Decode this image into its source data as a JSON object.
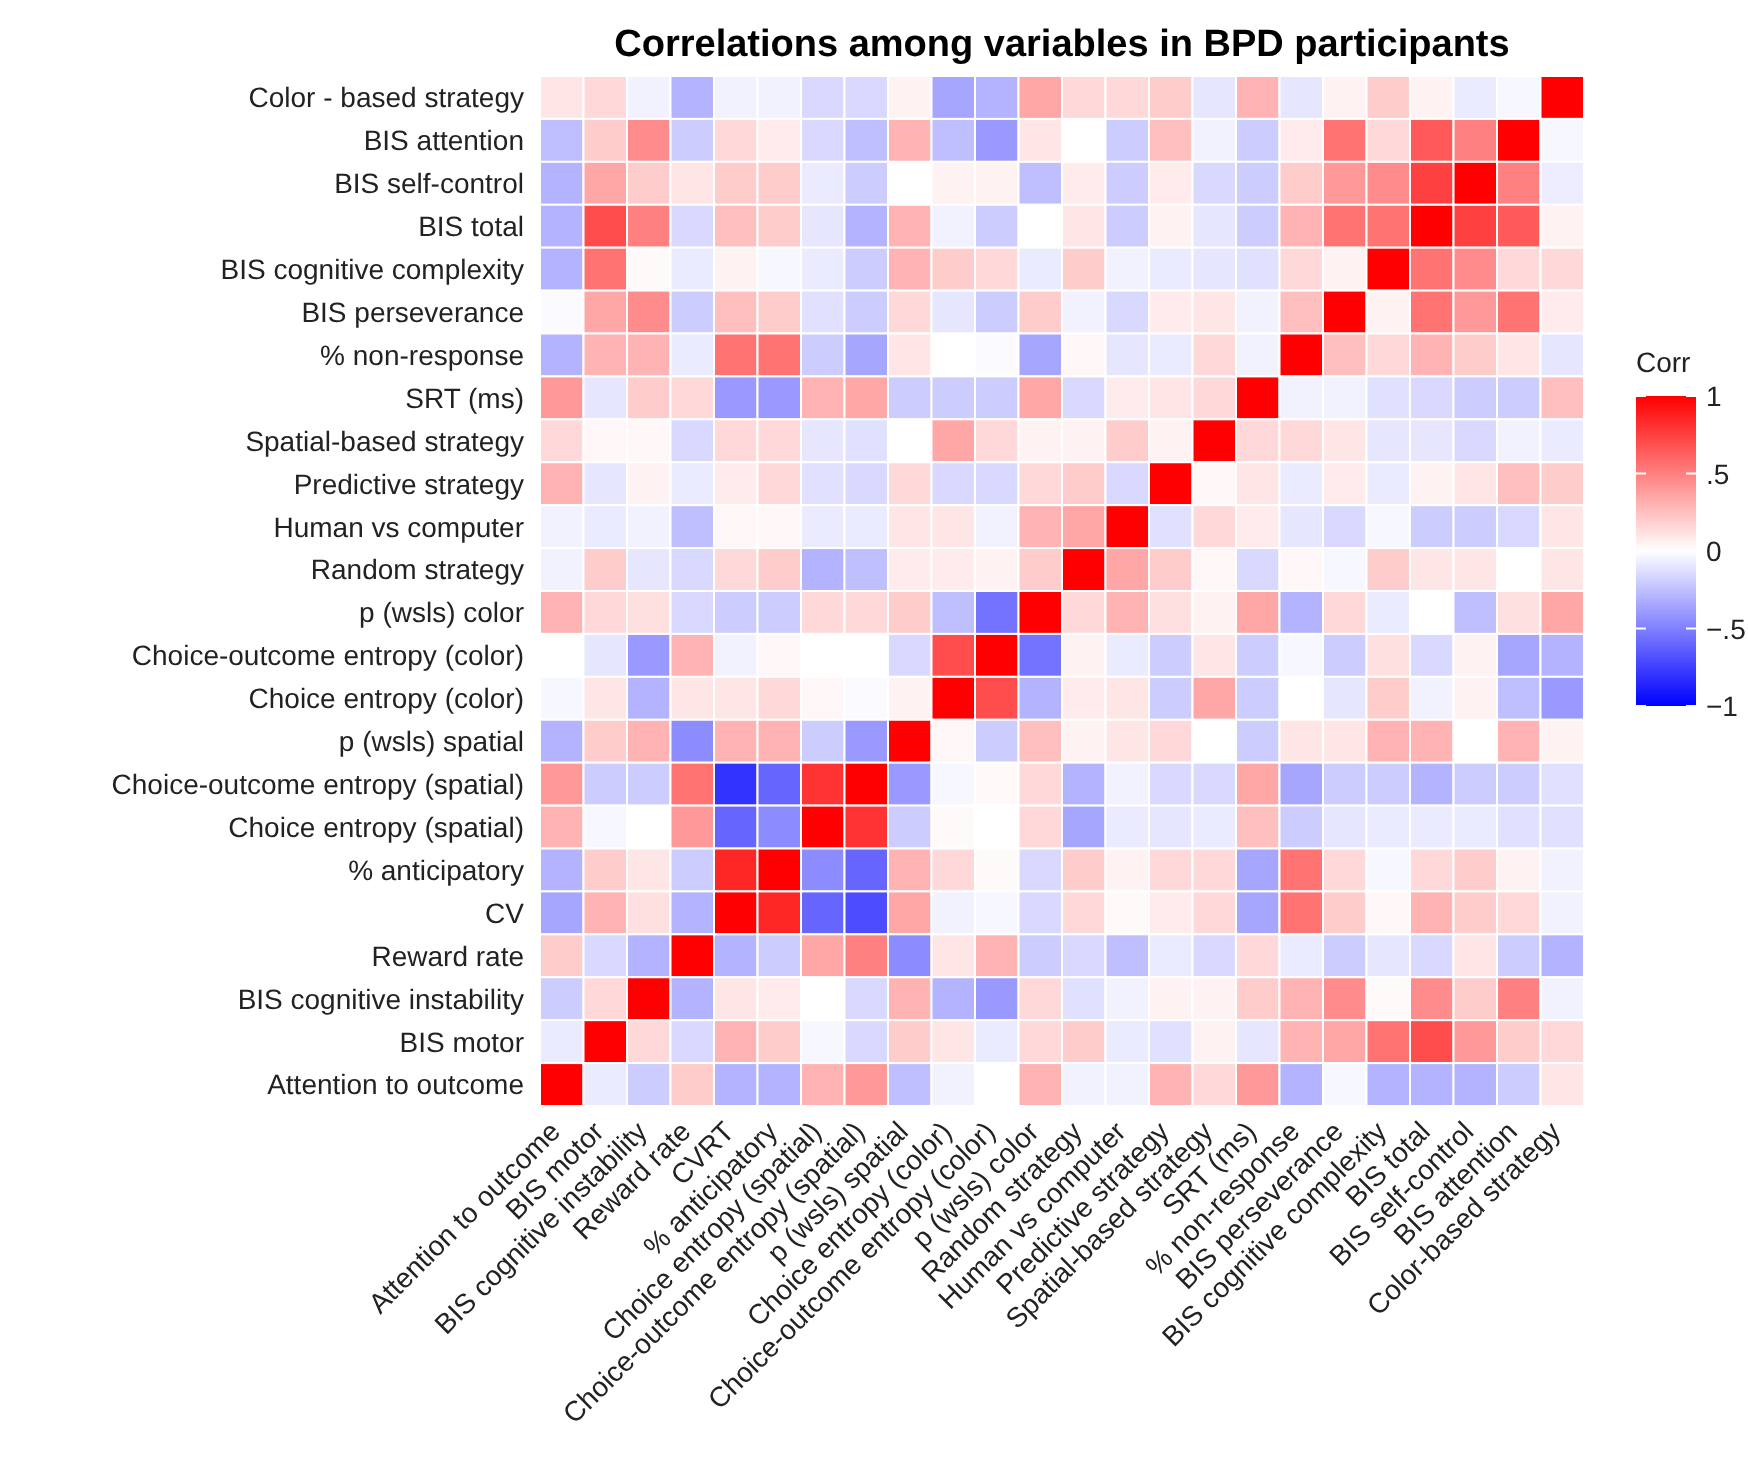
{
  "chart_data": {
    "type": "heatmap",
    "title": "Correlations among variables in BPD participants",
    "clabel": "Corr",
    "categories": [
      "Attention to outcome",
      "BIS motor",
      "BIS cognitive instability",
      "Reward rate",
      "CVRT",
      "% anticipatory",
      "Choice entropy (spatial)",
      "Choice-outcome entropy (spatial)",
      "p (wsls) spatial",
      "Choice entropy (color)",
      "Choice-outcome entropy (color)",
      "p (wsls) color",
      "Random strategy",
      "Human vs computer",
      "Predictive strategy",
      "Spatial-based strategy",
      "SRT (ms)",
      "% non-response",
      "BIS perseverance",
      "BIS cognitive complexity",
      "BIS total",
      "BIS self-control",
      "BIS attention",
      "Color-based strategy"
    ],
    "y_categories": [
      "Color - based strategy",
      "BIS attention",
      "BIS self-control",
      "BIS total",
      "BIS cognitive complexity",
      "BIS perseverance",
      "% non-response",
      "SRT (ms)",
      "Spatial-based strategy",
      "Predictive strategy",
      "Human vs computer",
      "Random strategy",
      "p (wsls) color",
      "Choice-outcome entropy (color)",
      "Choice entropy (color)",
      "p (wsls) spatial",
      "Choice-outcome entropy (spatial)",
      "Choice entropy (spatial)",
      "% anticipatory",
      "CV",
      "Reward rate",
      "BIS cognitive instability",
      "BIS motor",
      "Attention to outcome"
    ],
    "cells": [
      [
        0.1,
        0.15,
        -0.05,
        -0.3,
        -0.05,
        -0.05,
        -0.15,
        -0.15,
        0.05,
        -0.35,
        -0.3,
        0.35,
        0.15,
        0.15,
        0.2,
        -0.1,
        0.3,
        -0.1,
        0.05,
        0.2,
        0.05,
        -0.08,
        -0.03,
        1
      ],
      [
        -0.25,
        0.2,
        0.45,
        -0.2,
        0.15,
        0.08,
        -0.15,
        -0.25,
        0.3,
        -0.25,
        -0.4,
        0.1,
        0.0,
        -0.2,
        0.25,
        -0.05,
        -0.2,
        0.08,
        0.55,
        0.15,
        0.65,
        0.5,
        1,
        -0.03
      ],
      [
        -0.3,
        0.35,
        0.2,
        0.1,
        0.2,
        0.2,
        -0.08,
        -0.2,
        0.0,
        0.05,
        0.05,
        -0.25,
        0.08,
        -0.2,
        0.08,
        -0.15,
        -0.2,
        0.2,
        0.4,
        0.45,
        0.75,
        1,
        0.5,
        -0.07
      ],
      [
        -0.3,
        0.7,
        0.5,
        -0.15,
        0.25,
        0.2,
        -0.1,
        -0.3,
        0.3,
        -0.05,
        -0.2,
        0.0,
        0.1,
        -0.2,
        0.05,
        -0.1,
        -0.2,
        0.3,
        0.55,
        0.55,
        1,
        0.75,
        0.65,
        0.05
      ],
      [
        -0.3,
        0.55,
        0.02,
        -0.08,
        0.05,
        -0.03,
        -0.08,
        -0.2,
        0.3,
        0.2,
        0.15,
        -0.08,
        0.2,
        -0.05,
        -0.08,
        -0.1,
        -0.12,
        0.15,
        0.05,
        1,
        0.55,
        0.45,
        0.15,
        0.15
      ],
      [
        -0.02,
        0.35,
        0.45,
        -0.2,
        0.25,
        0.2,
        -0.12,
        -0.2,
        0.15,
        -0.1,
        -0.2,
        0.2,
        -0.05,
        -0.15,
        0.08,
        0.1,
        -0.05,
        0.25,
        1,
        0.05,
        0.55,
        0.4,
        0.55,
        0.08
      ],
      [
        -0.3,
        0.3,
        0.3,
        -0.08,
        0.55,
        0.55,
        -0.2,
        -0.35,
        0.1,
        0.0,
        -0.02,
        -0.35,
        0.03,
        -0.1,
        -0.08,
        0.15,
        -0.05,
        1,
        0.25,
        0.15,
        0.3,
        0.2,
        0.1,
        -0.1
      ],
      [
        0.4,
        -0.1,
        0.2,
        0.15,
        -0.4,
        -0.4,
        0.3,
        0.35,
        -0.2,
        -0.2,
        -0.2,
        0.35,
        -0.15,
        0.08,
        0.1,
        0.15,
        1,
        -0.05,
        -0.05,
        -0.12,
        -0.15,
        -0.2,
        -0.2,
        0.25
      ],
      [
        0.15,
        0.03,
        0.03,
        -0.15,
        0.15,
        0.15,
        -0.1,
        -0.12,
        0.0,
        0.35,
        0.15,
        0.05,
        0.05,
        0.2,
        0.05,
        1,
        0.15,
        0.15,
        0.1,
        -0.1,
        -0.1,
        -0.15,
        -0.05,
        -0.08
      ],
      [
        0.3,
        -0.1,
        0.05,
        -0.08,
        0.08,
        0.15,
        -0.12,
        -0.15,
        0.15,
        -0.15,
        -0.15,
        0.15,
        0.2,
        -0.15,
        1,
        0.03,
        0.1,
        -0.08,
        0.08,
        -0.08,
        0.05,
        0.1,
        0.25,
        0.2
      ],
      [
        -0.05,
        -0.08,
        -0.05,
        -0.25,
        0.03,
        0.03,
        -0.08,
        -0.08,
        0.1,
        0.1,
        -0.05,
        0.3,
        0.35,
        1,
        -0.12,
        0.15,
        0.08,
        -0.1,
        -0.15,
        -0.03,
        -0.2,
        -0.2,
        -0.15,
        0.1
      ],
      [
        -0.05,
        0.2,
        -0.1,
        -0.15,
        0.15,
        0.2,
        -0.3,
        -0.25,
        0.08,
        0.08,
        0.05,
        0.2,
        1,
        0.35,
        0.2,
        0.03,
        -0.15,
        0.03,
        -0.03,
        0.2,
        0.1,
        0.1,
        0.0,
        0.1
      ],
      [
        0.3,
        0.15,
        0.12,
        -0.15,
        -0.2,
        -0.2,
        0.15,
        0.15,
        0.2,
        -0.25,
        -0.55,
        1,
        0.15,
        0.3,
        0.12,
        0.05,
        0.35,
        -0.3,
        0.15,
        -0.08,
        0.0,
        -0.25,
        0.12,
        0.35
      ],
      [
        0.0,
        -0.1,
        -0.4,
        0.3,
        -0.05,
        0.03,
        0.0,
        0.0,
        -0.15,
        0.7,
        1,
        -0.55,
        0.05,
        -0.08,
        -0.2,
        0.1,
        -0.2,
        -0.03,
        -0.2,
        0.12,
        -0.15,
        0.05,
        -0.35,
        -0.3
      ],
      [
        -0.03,
        0.1,
        -0.3,
        0.1,
        0.1,
        0.15,
        0.03,
        -0.02,
        0.05,
        1,
        0.7,
        -0.3,
        0.08,
        0.1,
        -0.2,
        0.35,
        -0.2,
        0.0,
        -0.1,
        0.2,
        -0.05,
        0.05,
        -0.25,
        -0.4
      ],
      [
        -0.3,
        0.2,
        0.3,
        -0.45,
        0.3,
        0.3,
        -0.2,
        -0.4,
        1,
        0.03,
        -0.2,
        0.25,
        0.05,
        0.1,
        0.15,
        0.0,
        -0.2,
        0.1,
        0.1,
        0.3,
        0.3,
        0.0,
        0.3,
        0.05
      ],
      [
        0.4,
        -0.2,
        -0.2,
        0.55,
        -0.8,
        -0.6,
        0.8,
        1,
        -0.4,
        -0.03,
        0.02,
        0.15,
        -0.3,
        -0.05,
        -0.15,
        -0.15,
        0.35,
        -0.35,
        -0.2,
        -0.2,
        -0.3,
        -0.2,
        -0.2,
        -0.12
      ],
      [
        0.3,
        -0.03,
        0.0,
        0.4,
        -0.6,
        -0.45,
        1,
        0.8,
        -0.2,
        0.02,
        0.0,
        0.15,
        -0.35,
        -0.08,
        -0.1,
        -0.08,
        0.25,
        -0.2,
        -0.1,
        -0.08,
        -0.08,
        -0.08,
        -0.12,
        -0.12
      ],
      [
        -0.3,
        0.2,
        0.1,
        -0.2,
        0.85,
        1,
        -0.45,
        -0.6,
        0.3,
        0.15,
        0.02,
        -0.15,
        0.2,
        0.05,
        0.15,
        0.15,
        -0.35,
        0.55,
        0.15,
        -0.03,
        0.15,
        0.2,
        0.05,
        -0.05
      ],
      [
        -0.35,
        0.3,
        0.12,
        -0.3,
        1,
        0.85,
        -0.6,
        -0.7,
        0.35,
        -0.05,
        -0.03,
        -0.15,
        0.15,
        0.02,
        0.08,
        0.15,
        -0.35,
        0.55,
        0.2,
        0.03,
        0.3,
        0.2,
        0.15,
        -0.05
      ],
      [
        0.2,
        -0.15,
        -0.3,
        1,
        -0.3,
        -0.2,
        0.35,
        0.5,
        -0.45,
        0.1,
        0.3,
        -0.2,
        -0.15,
        -0.25,
        -0.08,
        -0.15,
        0.15,
        -0.08,
        -0.2,
        -0.1,
        -0.15,
        0.1,
        -0.2,
        -0.3
      ],
      [
        -0.2,
        0.15,
        1,
        -0.3,
        0.1,
        0.08,
        0.0,
        -0.15,
        0.3,
        -0.3,
        -0.4,
        0.15,
        -0.12,
        -0.05,
        0.05,
        0.05,
        0.2,
        0.3,
        0.45,
        0.02,
        0.45,
        0.2,
        0.5,
        -0.05
      ],
      [
        -0.08,
        1,
        0.15,
        -0.15,
        0.3,
        0.2,
        -0.03,
        -0.15,
        0.2,
        0.1,
        -0.08,
        0.15,
        0.2,
        -0.08,
        -0.12,
        0.05,
        -0.1,
        0.3,
        0.35,
        0.55,
        0.7,
        0.4,
        0.2,
        0.15
      ],
      [
        1,
        -0.08,
        -0.2,
        0.2,
        -0.3,
        -0.3,
        0.3,
        0.4,
        -0.25,
        -0.05,
        0.0,
        0.3,
        -0.05,
        -0.05,
        0.3,
        0.15,
        0.4,
        -0.3,
        -0.03,
        -0.3,
        -0.3,
        -0.3,
        -0.2,
        0.1
      ]
    ],
    "clim": [
      -1,
      1
    ],
    "cticks": [
      {
        "value": -1,
        "label": "−1"
      },
      {
        "value": -0.5,
        "label": "−.5"
      },
      {
        "value": 0,
        "label": "0"
      },
      {
        "value": 0.5,
        "label": ".5"
      },
      {
        "value": 1,
        "label": "1"
      }
    ]
  }
}
